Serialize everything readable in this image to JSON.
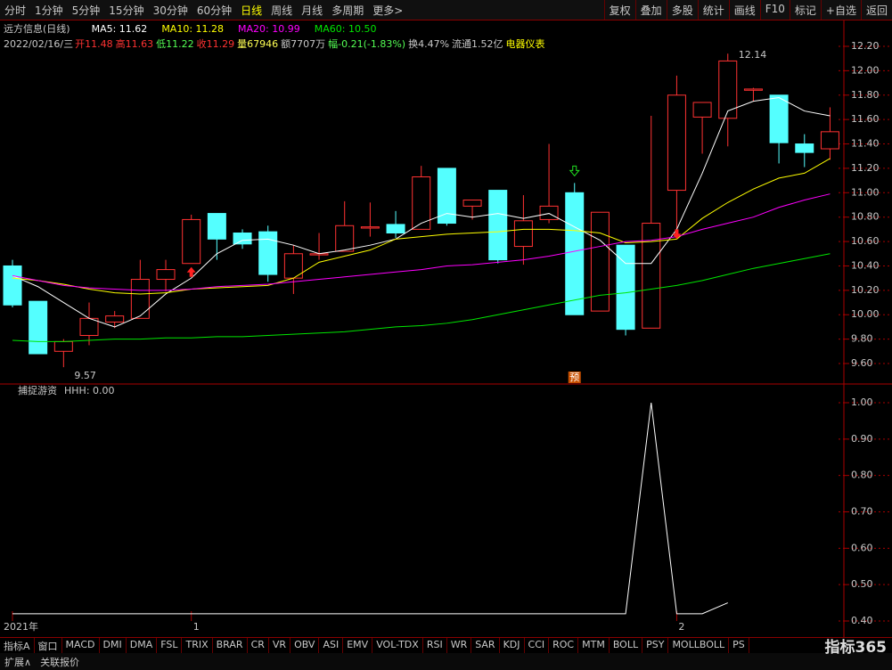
{
  "toolbar": {
    "left": [
      "分时",
      "1分钟",
      "5分钟",
      "15分钟",
      "30分钟",
      "60分钟",
      "日线",
      "周线",
      "月线",
      "多周期",
      "更多>"
    ],
    "right": [
      "复权",
      "叠加",
      "多股",
      "统计",
      "画线",
      "F10",
      "标记",
      "+自选",
      "返回"
    ]
  },
  "header": {
    "name": "远方信息(日线)",
    "ma": [
      "MA5: 11.62",
      "MA10: 11.28",
      "MA20: 10.99",
      "MA60: 10.50"
    ],
    "date": "2022/02/16/三",
    "stats": [
      "开11.48",
      "高11.63",
      "低11.22",
      "收11.29",
      "量67946",
      "额7707万",
      "幅-0.21(-1.83%)",
      "换4.47%",
      "流通1.52亿",
      "电器仪表"
    ]
  },
  "indicator_header": {
    "name": "捕捉游资",
    "value": "HHH: 0.00"
  },
  "chart_data": [
    {
      "type": "candlestick",
      "up_color": "#ff3232",
      "down_color": "#54ffff",
      "categories": [
        "2021年",
        null,
        null,
        null,
        null,
        null,
        null,
        "1",
        null,
        null,
        null,
        null,
        null,
        null,
        null,
        null,
        null,
        null,
        null,
        null,
        null,
        null,
        null,
        null,
        null,
        null,
        "2",
        null,
        null,
        null,
        null,
        null,
        null
      ],
      "open": [
        10.4,
        10.11,
        9.7,
        9.83,
        9.94,
        9.97,
        10.29,
        10.42,
        10.83,
        10.67,
        10.68,
        10.3,
        10.49,
        10.52,
        10.71,
        10.74,
        10.7,
        11.2,
        10.89,
        11.02,
        10.56,
        10.78,
        11.0,
        10.03,
        10.57,
        9.89,
        11.02,
        11.62,
        11.61,
        11.84,
        11.8,
        11.4,
        11.36
      ],
      "high": [
        10.45,
        10.11,
        9.8,
        10.1,
        10.03,
        10.45,
        10.45,
        10.82,
        10.83,
        10.7,
        10.73,
        10.57,
        10.67,
        10.93,
        10.92,
        10.85,
        11.22,
        11.2,
        10.94,
        11.02,
        10.98,
        11.4,
        11.08,
        10.84,
        10.57,
        11.63,
        11.96,
        11.74,
        12.14,
        11.86,
        11.8,
        11.48,
        11.7
      ],
      "low": [
        10.06,
        9.68,
        9.57,
        9.75,
        9.89,
        9.97,
        10.19,
        10.42,
        10.45,
        10.54,
        10.27,
        10.17,
        10.45,
        10.52,
        10.64,
        10.63,
        10.7,
        10.73,
        10.78,
        10.42,
        10.41,
        10.75,
        10.0,
        10.03,
        9.83,
        9.89,
        10.62,
        11.32,
        11.38,
        11.75,
        11.24,
        11.21,
        11.27
      ],
      "close": [
        10.08,
        9.68,
        9.78,
        9.97,
        9.99,
        10.29,
        10.37,
        10.78,
        10.62,
        10.58,
        10.33,
        10.5,
        10.5,
        10.73,
        10.72,
        10.67,
        11.13,
        10.75,
        10.94,
        10.45,
        10.77,
        10.89,
        10.0,
        10.84,
        9.88,
        10.75,
        11.8,
        11.74,
        12.08,
        11.85,
        11.41,
        11.33,
        11.5
      ],
      "series": [
        {
          "name": "MA5",
          "color": "#ffffff",
          "values": [
            10.32,
            10.23,
            10.1,
            9.97,
            9.9,
            9.99,
            10.17,
            10.3,
            10.5,
            10.61,
            10.62,
            10.57,
            10.5,
            10.53,
            10.57,
            10.62,
            10.75,
            10.83,
            10.8,
            10.83,
            10.79,
            10.83,
            10.72,
            10.61,
            10.42,
            10.42,
            10.7,
            11.16,
            11.67,
            11.75,
            11.78,
            11.67,
            11.63
          ]
        },
        {
          "name": "MA10",
          "color": "#ffff00",
          "values": [
            10.3,
            10.28,
            10.25,
            10.21,
            10.18,
            10.17,
            10.18,
            10.21,
            10.22,
            10.23,
            10.24,
            10.3,
            10.43,
            10.48,
            10.53,
            10.62,
            10.64,
            10.66,
            10.67,
            10.68,
            10.7,
            10.7,
            10.69,
            10.67,
            10.59,
            10.6,
            10.62,
            10.79,
            10.92,
            11.03,
            11.12,
            11.16,
            11.28
          ]
        },
        {
          "name": "MA20",
          "color": "#ff00ff",
          "values": [
            10.32,
            10.28,
            10.24,
            10.22,
            10.21,
            10.2,
            10.2,
            10.21,
            10.23,
            10.24,
            10.25,
            10.27,
            10.29,
            10.31,
            10.33,
            10.35,
            10.37,
            10.4,
            10.41,
            10.43,
            10.45,
            10.48,
            10.52,
            10.56,
            10.6,
            10.61,
            10.64,
            10.7,
            10.75,
            10.8,
            10.88,
            10.94,
            10.99
          ]
        },
        {
          "name": "MA60",
          "color": "#00e600",
          "values": [
            9.79,
            9.78,
            9.78,
            9.79,
            9.8,
            9.8,
            9.81,
            9.81,
            9.82,
            9.82,
            9.83,
            9.84,
            9.85,
            9.86,
            9.88,
            9.9,
            9.91,
            9.93,
            9.96,
            10.0,
            10.04,
            10.08,
            10.12,
            10.16,
            10.18,
            10.21,
            10.24,
            10.28,
            10.33,
            10.38,
            10.42,
            10.46,
            10.5
          ]
        }
      ],
      "annotations": [
        "9.57",
        "12.14",
        "预"
      ],
      "ylim": [
        9.6,
        12.2
      ],
      "yticks": [
        {
          "value": 9.6,
          "label": "9.60"
        },
        {
          "value": 9.8,
          "label": "9.80"
        },
        {
          "value": 10.0,
          "label": "10.00"
        },
        {
          "value": 10.2,
          "label": "10.20"
        },
        {
          "value": 10.4,
          "label": "10.40"
        },
        {
          "value": 10.6,
          "label": "10.60"
        },
        {
          "value": 10.8,
          "label": "10.80"
        },
        {
          "value": 11.0,
          "label": "11.00"
        },
        {
          "value": 11.2,
          "label": "11.20"
        },
        {
          "value": 11.4,
          "label": "11.40"
        },
        {
          "value": 11.6,
          "label": "11.60"
        },
        {
          "value": 11.8,
          "label": "11.80"
        },
        {
          "value": 12.0,
          "label": "12.00"
        },
        {
          "value": 12.2,
          "label": "12.20"
        }
      ],
      "grid": true
    },
    {
      "type": "line",
      "series": [
        {
          "name": "HHH",
          "color": "#ffffff",
          "values": [
            0.42,
            0.42,
            0.42,
            0.42,
            0.42,
            0.42,
            0.42,
            0.42,
            0.42,
            0.42,
            0.42,
            0.42,
            0.42,
            0.42,
            0.42,
            0.42,
            0.42,
            0.42,
            0.42,
            0.42,
            0.42,
            0.42,
            0.42,
            0.42,
            0.42,
            1.0,
            0.42,
            0.42,
            0.45,
            null,
            null,
            null,
            null
          ]
        }
      ],
      "ylim": [
        0.4,
        1.0
      ],
      "yticks": [
        {
          "value": 0.4,
          "label": "0.40"
        },
        {
          "value": 0.5,
          "label": "0.50"
        },
        {
          "value": 0.6,
          "label": "0.60"
        },
        {
          "value": 0.7,
          "label": "0.70"
        },
        {
          "value": 0.8,
          "label": "0.80"
        },
        {
          "value": 0.9,
          "label": "0.90"
        },
        {
          "value": 1.0,
          "label": "1.00"
        }
      ],
      "grid": true
    }
  ],
  "tabs": [
    "指标A",
    "窗口",
    "MACD",
    "DMI",
    "DMA",
    "FSL",
    "TRIX",
    "BRAR",
    "CR",
    "VR",
    "OBV",
    "ASI",
    "EMV",
    "VOL-TDX",
    "RSI",
    "WR",
    "SAR",
    "KDJ",
    "CCI",
    "ROC",
    "MTM",
    "BOLL",
    "PSY",
    "MOLLBOLL",
    "PS"
  ],
  "bottom": [
    "扩展∧",
    "关联报价"
  ],
  "logo": "指标365"
}
